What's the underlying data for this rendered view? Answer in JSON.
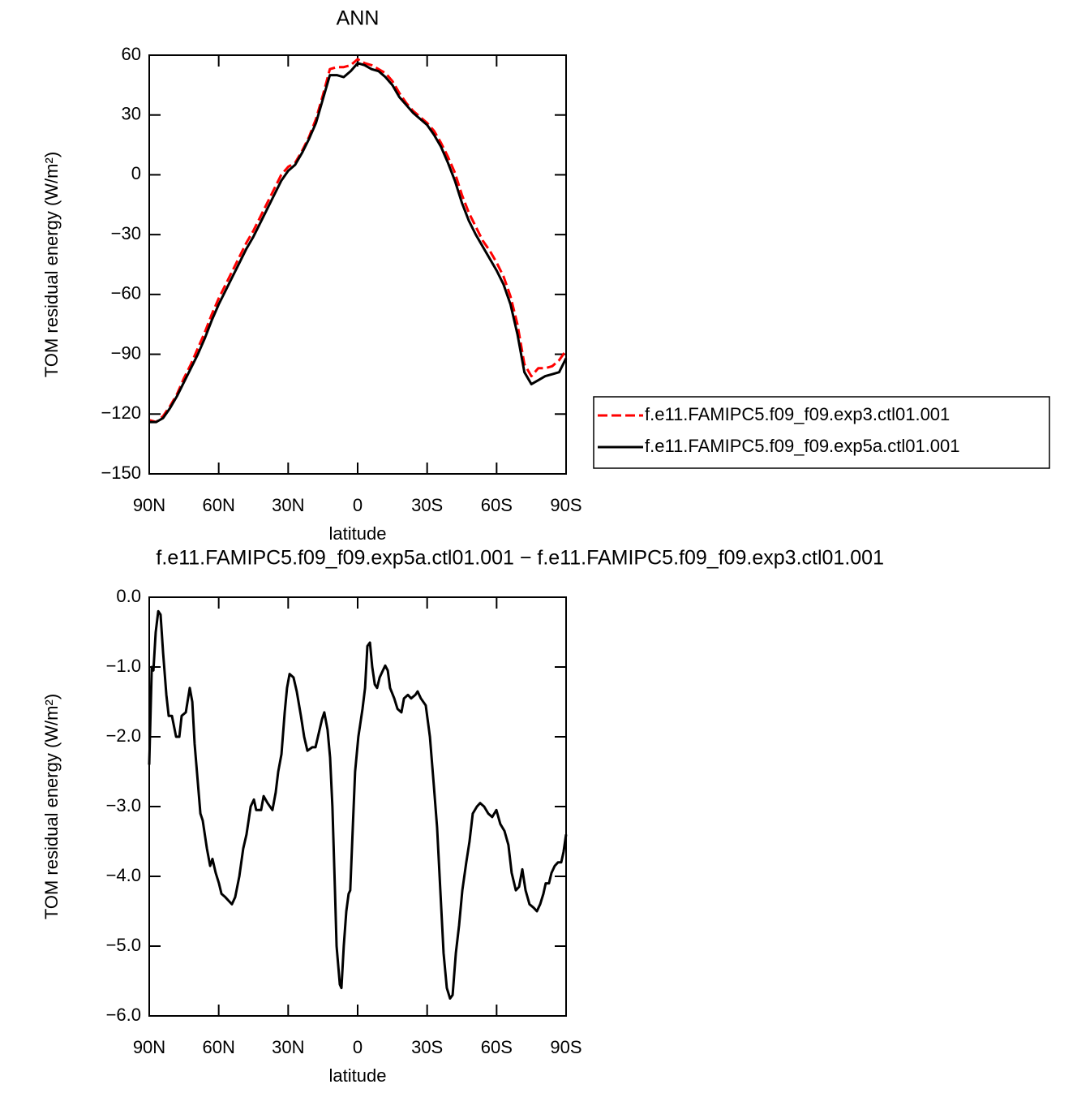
{
  "chart_data": [
    {
      "type": "line",
      "title": "ANN",
      "x_label": "latitude",
      "y_label": "TOM residual energy (W/m²)",
      "x": [
        90,
        87,
        84,
        81,
        78,
        75,
        72,
        69,
        66,
        63,
        60,
        57,
        54,
        51,
        48,
        45,
        42,
        39,
        36,
        33,
        30,
        27,
        24,
        21,
        18,
        15,
        12,
        9,
        6,
        3,
        0,
        -3,
        -6,
        -9,
        -12,
        -15,
        -18,
        -21,
        -24,
        -27,
        -30,
        -33,
        -36,
        -39,
        -42,
        -45,
        -48,
        -51,
        -54,
        -57,
        -60,
        -63,
        -66,
        -69,
        -72,
        -75,
        -78,
        -81,
        -84,
        -87,
        -90
      ],
      "series": [
        {
          "name": "f.e11.FAMIPC5.f09_f09.exp3.ctl01.001",
          "color": "#ff0000",
          "dash": true,
          "values": [
            -123,
            -124,
            -121,
            -116,
            -110,
            -102,
            -95,
            -87,
            -79,
            -70,
            -62,
            -55,
            -48,
            -41,
            -34,
            -28,
            -21,
            -14,
            -7,
            0,
            4,
            6,
            12,
            19,
            28,
            40,
            53,
            54,
            54,
            55,
            58,
            56,
            55,
            53,
            51,
            47,
            41,
            36,
            32,
            29,
            26,
            22,
            16,
            9,
            1,
            -10,
            -19,
            -26,
            -33,
            -38,
            -44,
            -51,
            -61,
            -75,
            -95,
            -101,
            -97,
            -97,
            -96,
            -93,
            -88
          ]
        },
        {
          "name": "f.e11.FAMIPC5.f09_f09.exp5a.ctl01.001",
          "color": "#000000",
          "dash": false,
          "values": [
            -124,
            -124,
            -122,
            -117,
            -111,
            -104,
            -97,
            -90,
            -82,
            -73,
            -65,
            -58,
            -51,
            -44,
            -37,
            -31,
            -24,
            -17,
            -10,
            -3,
            2,
            5,
            11,
            18,
            26,
            38,
            50,
            50,
            49,
            52,
            56,
            55,
            53,
            52,
            49,
            45,
            39,
            35,
            31,
            28,
            25,
            20,
            14,
            6,
            -3,
            -14,
            -23,
            -30,
            -36,
            -42,
            -48,
            -55,
            -65,
            -80,
            -99,
            -105,
            -103,
            -101,
            -100,
            -99,
            -92
          ]
        }
      ],
      "xlim": [
        90,
        -90
      ],
      "xticks": [
        {
          "value": 90,
          "label": "90N"
        },
        {
          "value": 60,
          "label": "60N"
        },
        {
          "value": 30,
          "label": "30N"
        },
        0,
        {
          "value": -30,
          "label": "30S"
        },
        {
          "value": -60,
          "label": "60S"
        },
        {
          "value": -90,
          "label": "90S"
        }
      ],
      "ylim": [
        -150,
        60
      ],
      "yticks": [
        {
          "value": -150,
          "label": "−150"
        },
        {
          "value": -120,
          "label": "−120"
        },
        {
          "value": -90,
          "label": "−90"
        },
        {
          "value": -60,
          "label": "−60"
        },
        {
          "value": -30,
          "label": "−30"
        },
        0,
        30,
        60
      ]
    },
    {
      "type": "line",
      "title": "f.e11.FAMIPC5.f09_f09.exp5a.ctl01.001 − f.e11.FAMIPC5.f09_f09.exp3.ctl01.001",
      "x_label": "latitude",
      "y_label": "TOM residual energy (W/m²)",
      "x": [
        90,
        88.9,
        88.2,
        87.2,
        86.1,
        85.1,
        84.0,
        82.6,
        81.6,
        80.2,
        78.4,
        77.0,
        76.0,
        74.2,
        72.5,
        71.4,
        70.4,
        67.9,
        66.9,
        65.1,
        63.7,
        62.7,
        61.3,
        59.9,
        58.8,
        57.1,
        55.7,
        54.3,
        52.9,
        51.1,
        49.4,
        48.0,
        46.2,
        44.8,
        43.8,
        41.7,
        40.6,
        38.9,
        36.8,
        35.4,
        34.3,
        32.9,
        31.5,
        30.5,
        29.4,
        27.7,
        26.3,
        24.5,
        23.1,
        21.7,
        19.6,
        18.2,
        16.8,
        15.4,
        14.4,
        13.0,
        11.9,
        10.9,
        9.8,
        9.1,
        7.7,
        7.0,
        6.0,
        4.9,
        3.9,
        3.2,
        2.1,
        1.1,
        -0.3,
        -2.1,
        -3.2,
        -4.2,
        -5.3,
        -6.3,
        -7.4,
        -8.4,
        -9.5,
        -10.9,
        -11.9,
        -13.0,
        -14.0,
        -15.8,
        -17.2,
        -18.9,
        -20.0,
        -21.7,
        -23.1,
        -24.9,
        -25.9,
        -27.3,
        -29.4,
        -31.2,
        -32.9,
        -34.3,
        -35.7,
        -37.1,
        -38.5,
        -39.9,
        -41.0,
        -42.4,
        -43.8,
        -45.2,
        -46.9,
        -48.3,
        -49.7,
        -51.5,
        -52.9,
        -54.6,
        -56.4,
        -58.1,
        -59.9,
        -61.6,
        -63.4,
        -65.1,
        -66.5,
        -68.3,
        -69.7,
        -71.1,
        -72.5,
        -74.2,
        -76.0,
        -77.4,
        -78.8,
        -80.2,
        -81.2,
        -82.6,
        -83.7,
        -85.1,
        -86.5,
        -87.9,
        -88.9,
        -90
      ],
      "series": [
        {
          "color": "#000000",
          "dash": false,
          "values": [
            -2.4,
            -1.0,
            -1.05,
            -0.5,
            -0.2,
            -0.25,
            -0.8,
            -1.4,
            -1.7,
            -1.7,
            -2.0,
            -2.0,
            -1.7,
            -1.65,
            -1.3,
            -1.5,
            -2.1,
            -3.1,
            -3.2,
            -3.6,
            -3.85,
            -3.75,
            -3.95,
            -4.1,
            -4.25,
            -4.3,
            -4.35,
            -4.4,
            -4.3,
            -4.0,
            -3.6,
            -3.4,
            -3.0,
            -2.9,
            -3.05,
            -3.05,
            -2.85,
            -2.95,
            -3.05,
            -2.8,
            -2.5,
            -2.25,
            -1.65,
            -1.3,
            -1.1,
            -1.15,
            -1.35,
            -1.7,
            -2.0,
            -2.2,
            -2.15,
            -2.15,
            -1.95,
            -1.75,
            -1.65,
            -1.9,
            -2.3,
            -3.0,
            -4.2,
            -5.0,
            -5.55,
            -5.6,
            -5.0,
            -4.5,
            -4.25,
            -4.2,
            -3.3,
            -2.5,
            -2.0,
            -1.6,
            -1.3,
            -0.7,
            -0.65,
            -1.0,
            -1.25,
            -1.3,
            -1.15,
            -1.05,
            -0.98,
            -1.05,
            -1.3,
            -1.45,
            -1.6,
            -1.65,
            -1.45,
            -1.4,
            -1.45,
            -1.4,
            -1.35,
            -1.45,
            -1.55,
            -2.0,
            -2.7,
            -3.3,
            -4.2,
            -5.1,
            -5.6,
            -5.75,
            -5.7,
            -5.1,
            -4.7,
            -4.2,
            -3.8,
            -3.5,
            -3.1,
            -3.0,
            -2.95,
            -3.0,
            -3.1,
            -3.15,
            -3.05,
            -3.25,
            -3.35,
            -3.55,
            -3.95,
            -4.2,
            -4.15,
            -3.9,
            -4.2,
            -4.4,
            -4.45,
            -4.5,
            -4.4,
            -4.25,
            -4.1,
            -4.1,
            -3.95,
            -3.85,
            -3.8,
            -3.8,
            -3.65,
            -3.4
          ]
        }
      ],
      "xlim": [
        90,
        -90
      ],
      "xticks": [
        {
          "value": 90,
          "label": "90N"
        },
        {
          "value": 60,
          "label": "60N"
        },
        {
          "value": 30,
          "label": "30N"
        },
        0,
        {
          "value": -30,
          "label": "30S"
        },
        {
          "value": -60,
          "label": "60S"
        },
        {
          "value": -90,
          "label": "90S"
        }
      ],
      "ylim": [
        -6,
        0
      ],
      "yticks": [
        {
          "value": -6,
          "label": "−6.0"
        },
        {
          "value": -5,
          "label": "−5.0"
        },
        {
          "value": -4,
          "label": "−4.0"
        },
        {
          "value": -3,
          "label": "−3.0"
        },
        {
          "value": -2,
          "label": "−2.0"
        },
        {
          "value": -1,
          "label": "−1.0"
        },
        {
          "value": 0,
          "label": "0.0"
        }
      ]
    }
  ]
}
